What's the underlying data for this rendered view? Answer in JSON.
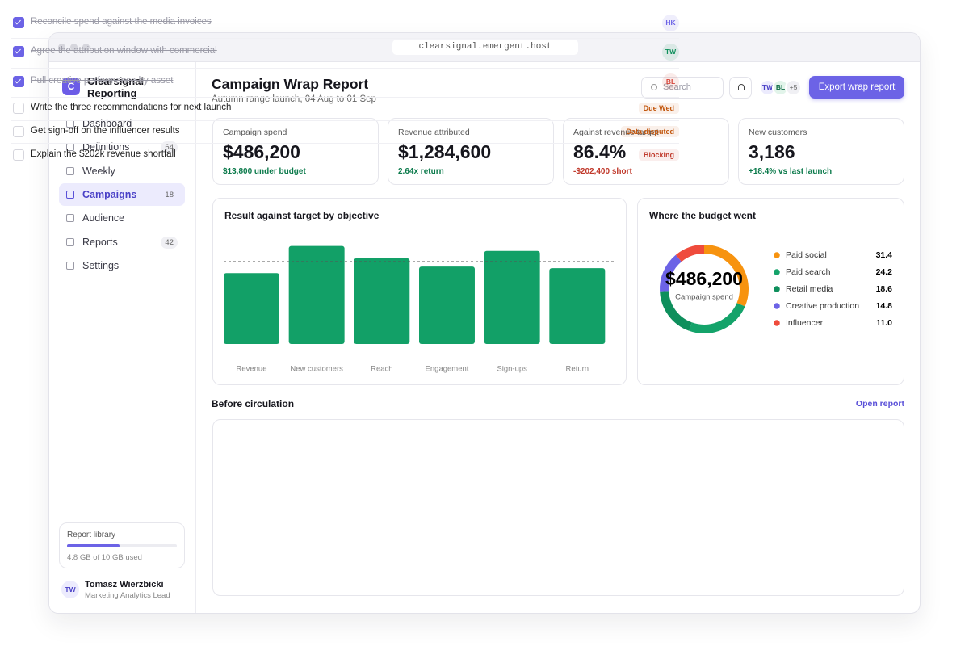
{
  "browser": {
    "url": "clearsignal.emergent.host"
  },
  "sidebar": {
    "brand": {
      "initial": "C",
      "name": "Clearsignal Reporting"
    },
    "nav": [
      {
        "label": "Dashboard"
      },
      {
        "label": "Definitions",
        "count": 64
      },
      {
        "label": "Weekly"
      },
      {
        "label": "Campaigns",
        "count": 18,
        "active": true
      },
      {
        "label": "Audience"
      },
      {
        "label": "Reports",
        "count": 42
      },
      {
        "label": "Settings"
      }
    ],
    "library": {
      "title": "Report library",
      "used": 4.8,
      "total": 10,
      "usage_label": "4.8 GB of 10 GB used"
    },
    "user": {
      "initials": "TW",
      "name": "Tomasz Wierzbicki",
      "role": "Marketing Analytics Lead"
    }
  },
  "header": {
    "title": "Campaign Wrap Report",
    "subtitle": "Autumn range launch, 04 Aug to 01 Sep",
    "search": "Search",
    "avatars": [
      "TW",
      "BL"
    ],
    "more": "+5",
    "button": "Export wrap report"
  },
  "kpis": [
    {
      "label": "Campaign spend",
      "value": "$486,200",
      "note": "$13,800 under budget",
      "note_color": "#0b7a4b"
    },
    {
      "label": "Revenue attributed",
      "value": "$1,284,600",
      "note": "2.64x return",
      "note_color": "#0b7a4b"
    },
    {
      "label": "Against revenue target",
      "value": "86.4%",
      "note": "-$202,400 short",
      "note_color": "#c0392b"
    },
    {
      "label": "New customers",
      "value": "3,186",
      "note": "+18.4% vs last launch",
      "note_color": "#0b7a4b"
    }
  ],
  "chart_data": [
    {
      "type": "bar",
      "title": "Result against target by objective",
      "categories": [
        "Revenue",
        "New customers",
        "Reach",
        "Engagement",
        "Sign-ups",
        "Return"
      ],
      "values": [
        86,
        119,
        104,
        94,
        113,
        92
      ],
      "target": 100,
      "color": "#12a067",
      "ylim": [
        0,
        130
      ]
    },
    {
      "type": "donut",
      "title": "Where the budget went",
      "center_value": "$486,200",
      "center_label": "Campaign spend",
      "categories": [
        "Paid social",
        "Paid search",
        "Retail media",
        "Creative production",
        "Influencer"
      ],
      "values": [
        31.4,
        24.2,
        18.6,
        14.8,
        11
      ],
      "value_labels": [
        "31.4",
        "24.2",
        "18.6",
        "14.8",
        "11.0"
      ],
      "colors": [
        "#f7930f",
        "#14a36a",
        "#0e8f5c",
        "#6c63e6",
        "#ef4b3c"
      ]
    }
  ],
  "checklist": {
    "title": "Before circulation",
    "link": "Open report",
    "items": [
      {
        "text": "Reconcile spend against the media invoices",
        "done": true,
        "assignee": "HK",
        "color": "#6c63e6"
      },
      {
        "text": "Agree the attribution window with commercial",
        "done": true,
        "assignee": "TW",
        "color": "#0e8f5c"
      },
      {
        "text": "Pull creative performance by asset",
        "done": true,
        "assignee": "BL",
        "color": "#d6453a"
      },
      {
        "text": "Write the three recommendations for next launch",
        "done": false,
        "status": "Due Wed",
        "color": "#c2560c"
      },
      {
        "text": "Get sign-off on the influencer results",
        "done": false,
        "status": "Data disputed",
        "color": "#c2560c"
      },
      {
        "text": "Explain the $202k revenue shortfall",
        "done": false,
        "status": "Blocking",
        "color": "#c0392b"
      }
    ]
  }
}
